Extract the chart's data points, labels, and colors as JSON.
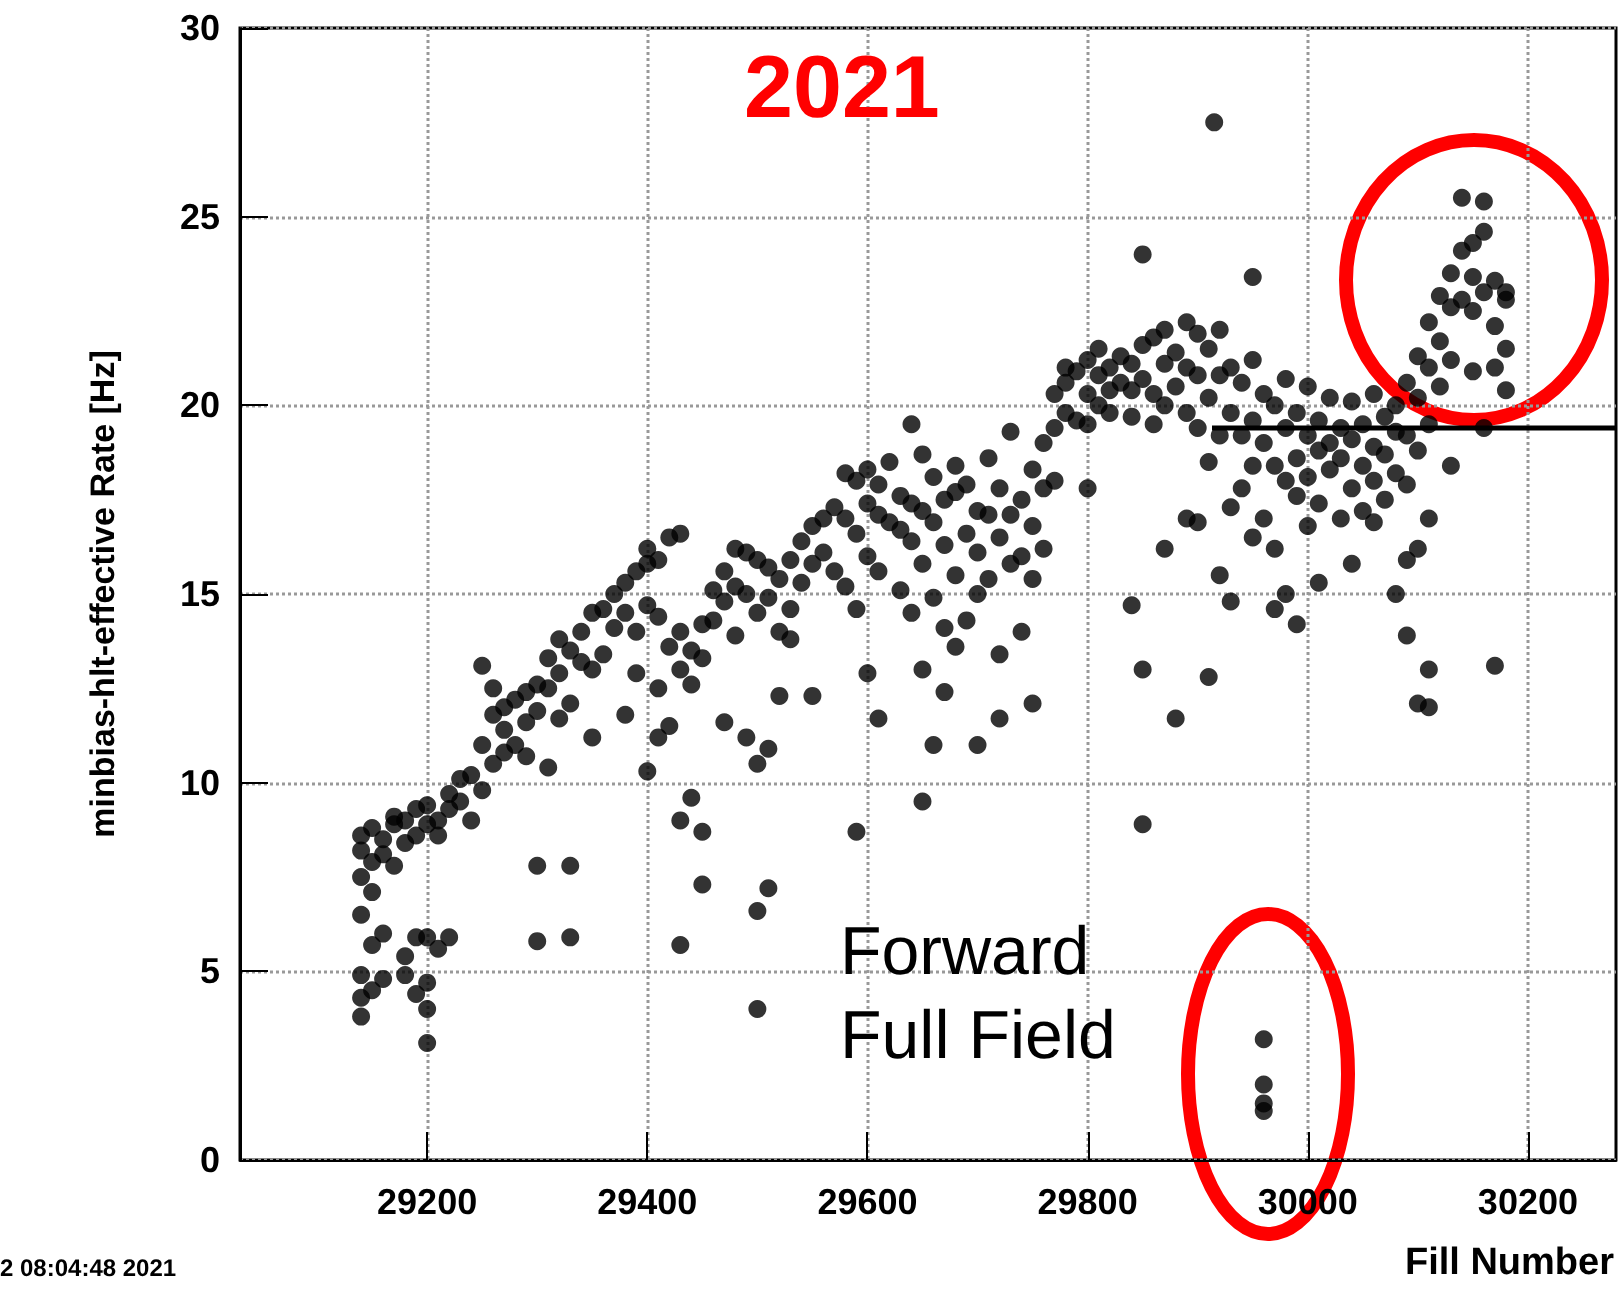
{
  "chart_data": {
    "type": "scatter",
    "xlabel": "Fill Number",
    "ylabel": "minbias-hlt-effective Rate [Hz]",
    "annotations": [
      "2021",
      "Forward Full Field",
      "2 08:04:48 2021"
    ],
    "xlim": [
      29030,
      30280
    ],
    "ylim": [
      0,
      30
    ],
    "xticks": [
      29200,
      29400,
      29600,
      29800,
      30000,
      30200
    ],
    "yticks": [
      0,
      5,
      10,
      15,
      20,
      25,
      30
    ],
    "grid": true,
    "series": [
      {
        "marker": "circle",
        "color": "#000000",
        "x": [
          29140,
          29140,
          29140,
          29140,
          29140,
          29140,
          29140,
          29150,
          29150,
          29150,
          29150,
          29150,
          29160,
          29160,
          29160,
          29160,
          29170,
          29170,
          29170,
          29180,
          29180,
          29180,
          29180,
          29190,
          29190,
          29190,
          29190,
          29200,
          29200,
          29200,
          29200,
          29200,
          29200,
          29210,
          29210,
          29210,
          29220,
          29220,
          29220,
          29230,
          29230,
          29240,
          29240,
          29250,
          29250,
          29250,
          29260,
          29260,
          29260,
          29270,
          29270,
          29270,
          29280,
          29280,
          29290,
          29290,
          29290,
          29300,
          29300,
          29300,
          29300,
          29310,
          29310,
          29310,
          29320,
          29320,
          29320,
          29330,
          29330,
          29330,
          29330,
          29340,
          29340,
          29350,
          29350,
          29350,
          29360,
          29360,
          29370,
          29370,
          29380,
          29380,
          29380,
          29390,
          29390,
          29390,
          29400,
          29400,
          29400,
          29400,
          29410,
          29410,
          29410,
          29410,
          29420,
          29420,
          29420,
          29430,
          29430,
          29430,
          29430,
          29430,
          29440,
          29440,
          29440,
          29450,
          29450,
          29450,
          29450,
          29460,
          29460,
          29470,
          29470,
          29470,
          29480,
          29480,
          29480,
          29490,
          29490,
          29490,
          29500,
          29500,
          29500,
          29500,
          29500,
          29510,
          29510,
          29510,
          29510,
          29520,
          29520,
          29520,
          29530,
          29530,
          29530,
          29540,
          29540,
          29550,
          29550,
          29550,
          29560,
          29560,
          29570,
          29570,
          29580,
          29580,
          29580,
          29590,
          29590,
          29590,
          29590,
          29600,
          29600,
          29600,
          29600,
          29610,
          29610,
          29610,
          29610,
          29620,
          29620,
          29630,
          29630,
          29630,
          29640,
          29640,
          29640,
          29640,
          29650,
          29650,
          29650,
          29650,
          29650,
          29660,
          29660,
          29660,
          29660,
          29670,
          29670,
          29670,
          29670,
          29680,
          29680,
          29680,
          29680,
          29690,
          29690,
          29690,
          29700,
          29700,
          29700,
          29700,
          29710,
          29710,
          29710,
          29720,
          29720,
          29720,
          29720,
          29730,
          29730,
          29730,
          29740,
          29740,
          29740,
          29750,
          29750,
          29750,
          29750,
          29760,
          29760,
          29760,
          29770,
          29770,
          29770,
          29780,
          29780,
          29780,
          29790,
          29790,
          29800,
          29800,
          29800,
          29800,
          29810,
          29810,
          29810,
          29820,
          29820,
          29820,
          29830,
          29830,
          29840,
          29840,
          29840,
          29840,
          29850,
          29850,
          29850,
          29850,
          29850,
          29860,
          29860,
          29860,
          29870,
          29870,
          29870,
          29870,
          29880,
          29880,
          29880,
          29890,
          29890,
          29890,
          29890,
          29900,
          29900,
          29900,
          29900,
          29910,
          29910,
          29910,
          29910,
          29915,
          29920,
          29920,
          29920,
          29920,
          29930,
          29930,
          29930,
          29930,
          29940,
          29940,
          29940,
          29950,
          29950,
          29950,
          29950,
          29950,
          29960,
          29960,
          29960,
          29960,
          29960,
          29960,
          29960,
          29970,
          29970,
          29970,
          29970,
          29980,
          29980,
          29980,
          29980,
          29990,
          29990,
          29990,
          29990,
          30000,
          30000,
          30000,
          30000,
          30010,
          30010,
          30010,
          30010,
          30020,
          30020,
          30020,
          30030,
          30030,
          30030,
          30040,
          30040,
          30040,
          30040,
          30050,
          30050,
          30050,
          30060,
          30060,
          30060,
          30060,
          30070,
          30070,
          30070,
          30080,
          30080,
          30080,
          30080,
          30090,
          30090,
          30090,
          30090,
          30090,
          30100,
          30100,
          30100,
          30100,
          30100,
          30110,
          30110,
          30110,
          30110,
          30110,
          30110,
          30120,
          30120,
          30120,
          30130,
          30130,
          30130,
          30130,
          30140,
          30140,
          30140,
          30150,
          30150,
          30150,
          30150,
          30160,
          30160,
          30160,
          30160,
          30170,
          30170,
          30170,
          30170,
          30180,
          30180,
          30180,
          30180
        ],
        "values": [
          7.5,
          8.2,
          8.6,
          4.9,
          4.3,
          3.8,
          6.5,
          7.9,
          8.8,
          7.1,
          5.7,
          4.5,
          8.1,
          8.5,
          6.0,
          4.8,
          8.9,
          7.8,
          9.1,
          9.0,
          8.4,
          4.9,
          5.4,
          9.3,
          8.6,
          5.9,
          4.4,
          9.4,
          8.9,
          3.1,
          4.0,
          4.7,
          5.9,
          9.0,
          8.6,
          5.6,
          9.7,
          9.3,
          5.9,
          10.1,
          9.5,
          10.2,
          9.0,
          11.0,
          9.8,
          13.1,
          11.8,
          10.5,
          12.5,
          11.4,
          10.8,
          12.0,
          12.2,
          11.0,
          11.6,
          12.4,
          10.7,
          12.6,
          11.9,
          5.8,
          7.8,
          13.3,
          12.5,
          10.4,
          13.8,
          12.9,
          11.7,
          13.5,
          12.1,
          5.9,
          7.8,
          14.0,
          13.2,
          14.5,
          13.0,
          11.2,
          14.6,
          13.4,
          15.0,
          14.1,
          15.3,
          14.5,
          11.8,
          15.6,
          14.0,
          12.9,
          15.8,
          16.2,
          14.7,
          10.3,
          15.9,
          14.4,
          12.5,
          11.2,
          16.5,
          13.6,
          11.5,
          16.6,
          14.0,
          13.0,
          9.0,
          5.7,
          13.5,
          12.6,
          9.6,
          14.2,
          13.3,
          8.7,
          7.3,
          15.1,
          14.3,
          15.6,
          14.8,
          11.6,
          16.2,
          15.2,
          13.9,
          16.1,
          15.0,
          11.2,
          15.9,
          14.5,
          10.5,
          6.6,
          4.0,
          15.7,
          14.9,
          10.9,
          7.2,
          15.4,
          14.0,
          12.3,
          15.9,
          14.6,
          13.8,
          16.4,
          15.3,
          16.8,
          15.8,
          12.3,
          17.0,
          16.1,
          17.3,
          15.6,
          18.2,
          17.0,
          15.2,
          18.0,
          16.6,
          14.6,
          8.7,
          18.3,
          17.4,
          16.0,
          12.9,
          17.9,
          17.1,
          15.6,
          11.7,
          18.5,
          16.9,
          17.6,
          16.7,
          15.1,
          19.5,
          17.4,
          16.4,
          14.5,
          18.7,
          17.2,
          15.8,
          13.0,
          9.5,
          18.1,
          16.9,
          14.9,
          11.0,
          17.5,
          16.3,
          14.1,
          12.4,
          18.4,
          17.7,
          15.5,
          13.6,
          17.9,
          16.6,
          14.3,
          17.2,
          16.1,
          15.0,
          11.0,
          18.6,
          17.1,
          15.4,
          17.8,
          16.5,
          13.4,
          11.7,
          19.3,
          17.1,
          15.8,
          17.5,
          16.0,
          14.0,
          18.3,
          16.8,
          15.4,
          12.1,
          19.0,
          17.8,
          16.2,
          20.3,
          19.4,
          18.0,
          20.6,
          19.8,
          21.0,
          20.9,
          19.6,
          21.2,
          20.3,
          19.5,
          17.8,
          20.8,
          20.0,
          21.5,
          21.0,
          20.4,
          19.8,
          21.3,
          20.6,
          20.4,
          19.7,
          21.1,
          14.7,
          21.6,
          20.7,
          24.0,
          8.9,
          13.0,
          21.8,
          20.3,
          19.5,
          22.0,
          21.1,
          20.0,
          16.2,
          21.4,
          20.5,
          11.7,
          22.2,
          21.0,
          19.8,
          17.0,
          21.9,
          20.8,
          19.4,
          16.9,
          21.5,
          20.2,
          18.5,
          12.8,
          27.5,
          22.0,
          20.8,
          19.2,
          15.5,
          21.0,
          19.8,
          17.3,
          14.8,
          20.6,
          19.2,
          17.8,
          23.4,
          21.2,
          19.6,
          16.5,
          18.4,
          20.3,
          19.0,
          17.0,
          3.2,
          2.0,
          1.5,
          1.3,
          20.0,
          18.4,
          16.2,
          14.6,
          20.7,
          19.4,
          18.0,
          15.0,
          19.8,
          18.6,
          17.6,
          14.2,
          20.5,
          19.2,
          18.1,
          16.8,
          19.6,
          18.8,
          17.4,
          15.3,
          20.2,
          19.0,
          18.3,
          19.4,
          18.6,
          17.0,
          20.1,
          19.1,
          17.8,
          15.8,
          19.5,
          18.4,
          17.2,
          20.3,
          18.9,
          18.0,
          16.9,
          19.7,
          18.7,
          17.5,
          20.0,
          19.3,
          18.2,
          15.0,
          20.6,
          19.2,
          17.9,
          15.9,
          13.9,
          21.3,
          20.2,
          18.8,
          16.2,
          12.1,
          22.2,
          21.0,
          19.5,
          12.0,
          13.0,
          17.0,
          22.9,
          21.7,
          20.5,
          23.5,
          22.6,
          21.2,
          18.4,
          25.5,
          24.1,
          22.8,
          24.3,
          23.4,
          22.5,
          20.9,
          25.4,
          24.6,
          23.0,
          19.4,
          23.3,
          22.1,
          21.0,
          13.1,
          22.8,
          21.5,
          20.4,
          23.0
        ]
      },
      {
        "type": "line",
        "color": "#000000",
        "x": [
          29913,
          30280
        ],
        "values": [
          19.4,
          19.4
        ]
      }
    ]
  }
}
